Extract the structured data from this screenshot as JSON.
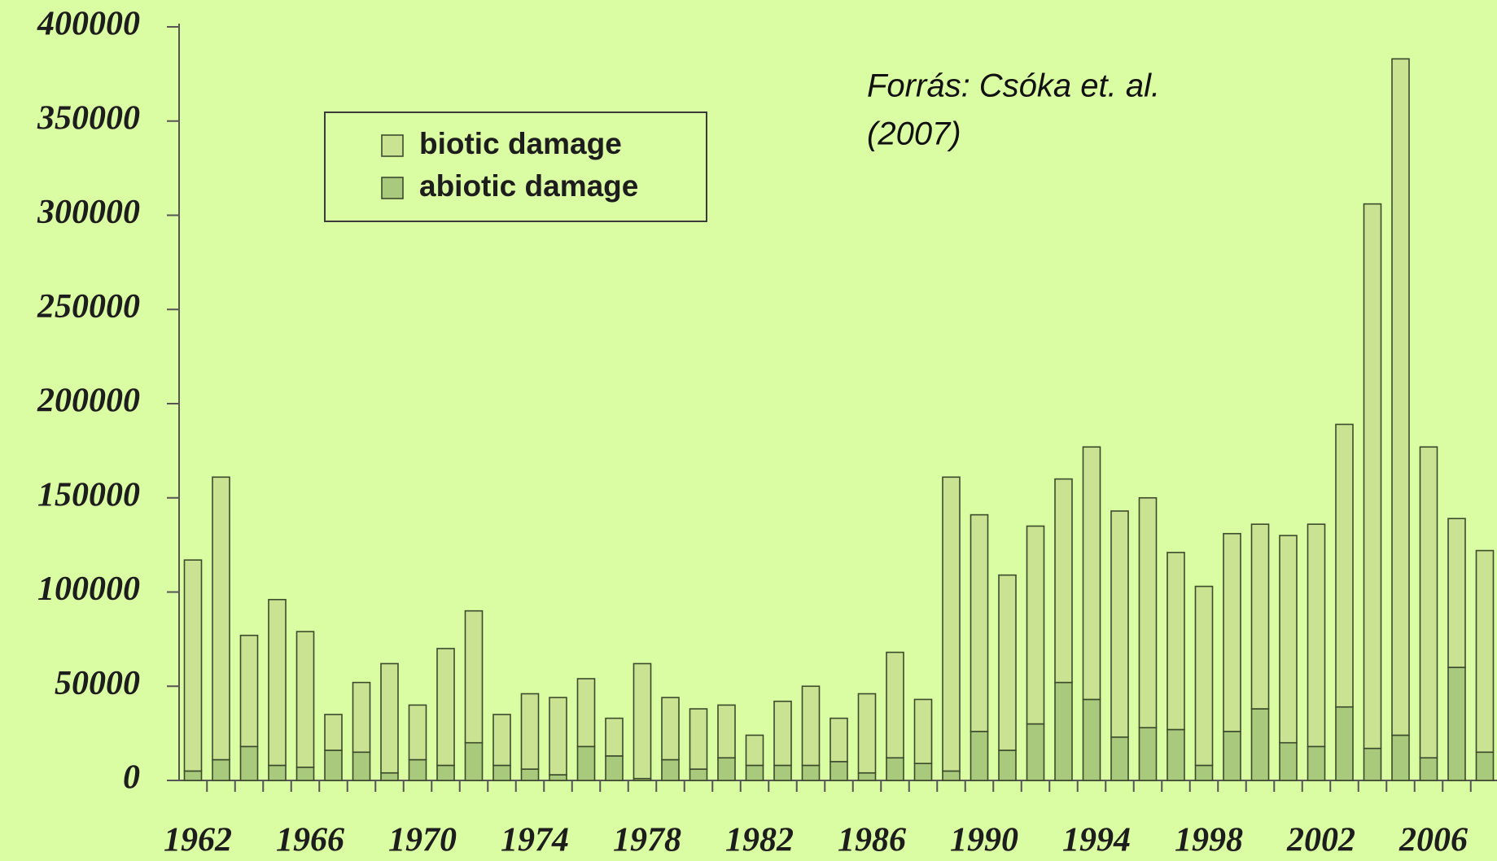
{
  "chart_data": {
    "type": "stacked_bar",
    "annotation": [
      "Forrás:  Csóka et. al.",
      "(2007)"
    ],
    "categories": [
      "1962",
      null,
      null,
      null,
      "1966",
      null,
      null,
      null,
      "1970",
      null,
      null,
      null,
      "1974",
      null,
      null,
      null,
      "1978",
      null,
      null,
      null,
      "1982",
      null,
      null,
      null,
      "1986",
      null,
      null,
      null,
      "1990",
      null,
      null,
      null,
      "1994",
      null,
      null,
      null,
      "1998",
      null,
      null,
      null,
      "2002",
      null,
      null,
      null,
      "2006",
      null,
      null
    ],
    "series": [
      {
        "name": "abiotic damage",
        "color": "#a9c97c",
        "values": [
          5000,
          11000,
          18000,
          8000,
          7000,
          16000,
          15000,
          4000,
          11000,
          8000,
          20000,
          8000,
          6000,
          3000,
          18000,
          13000,
          1000,
          11000,
          6000,
          12000,
          8000,
          8000,
          8000,
          10000,
          4000,
          12000,
          9000,
          5000,
          26000,
          16000,
          30000,
          52000,
          43000,
          23000,
          28000,
          27000,
          8000,
          26000,
          38000,
          20000,
          18000,
          39000,
          17000,
          24000,
          12000,
          60000,
          15000
        ]
      },
      {
        "name": "biotic damage",
        "color": "#c9e393",
        "values": [
          112000,
          150000,
          59000,
          88000,
          72000,
          19000,
          37000,
          58000,
          29000,
          62000,
          70000,
          27000,
          40000,
          41000,
          36000,
          20000,
          61000,
          33000,
          32000,
          28000,
          16000,
          34000,
          42000,
          23000,
          42000,
          56000,
          34000,
          156000,
          115000,
          93000,
          105000,
          108000,
          134000,
          120000,
          122000,
          94000,
          95000,
          105000,
          98000,
          110000,
          118000,
          150000,
          289000,
          359000,
          165000,
          79000,
          107000
        ]
      }
    ],
    "legend_order": [
      1,
      0
    ],
    "ylim": [
      0,
      400000
    ],
    "yticks": [
      0,
      50000,
      100000,
      150000,
      200000,
      250000,
      300000,
      350000,
      400000
    ]
  }
}
